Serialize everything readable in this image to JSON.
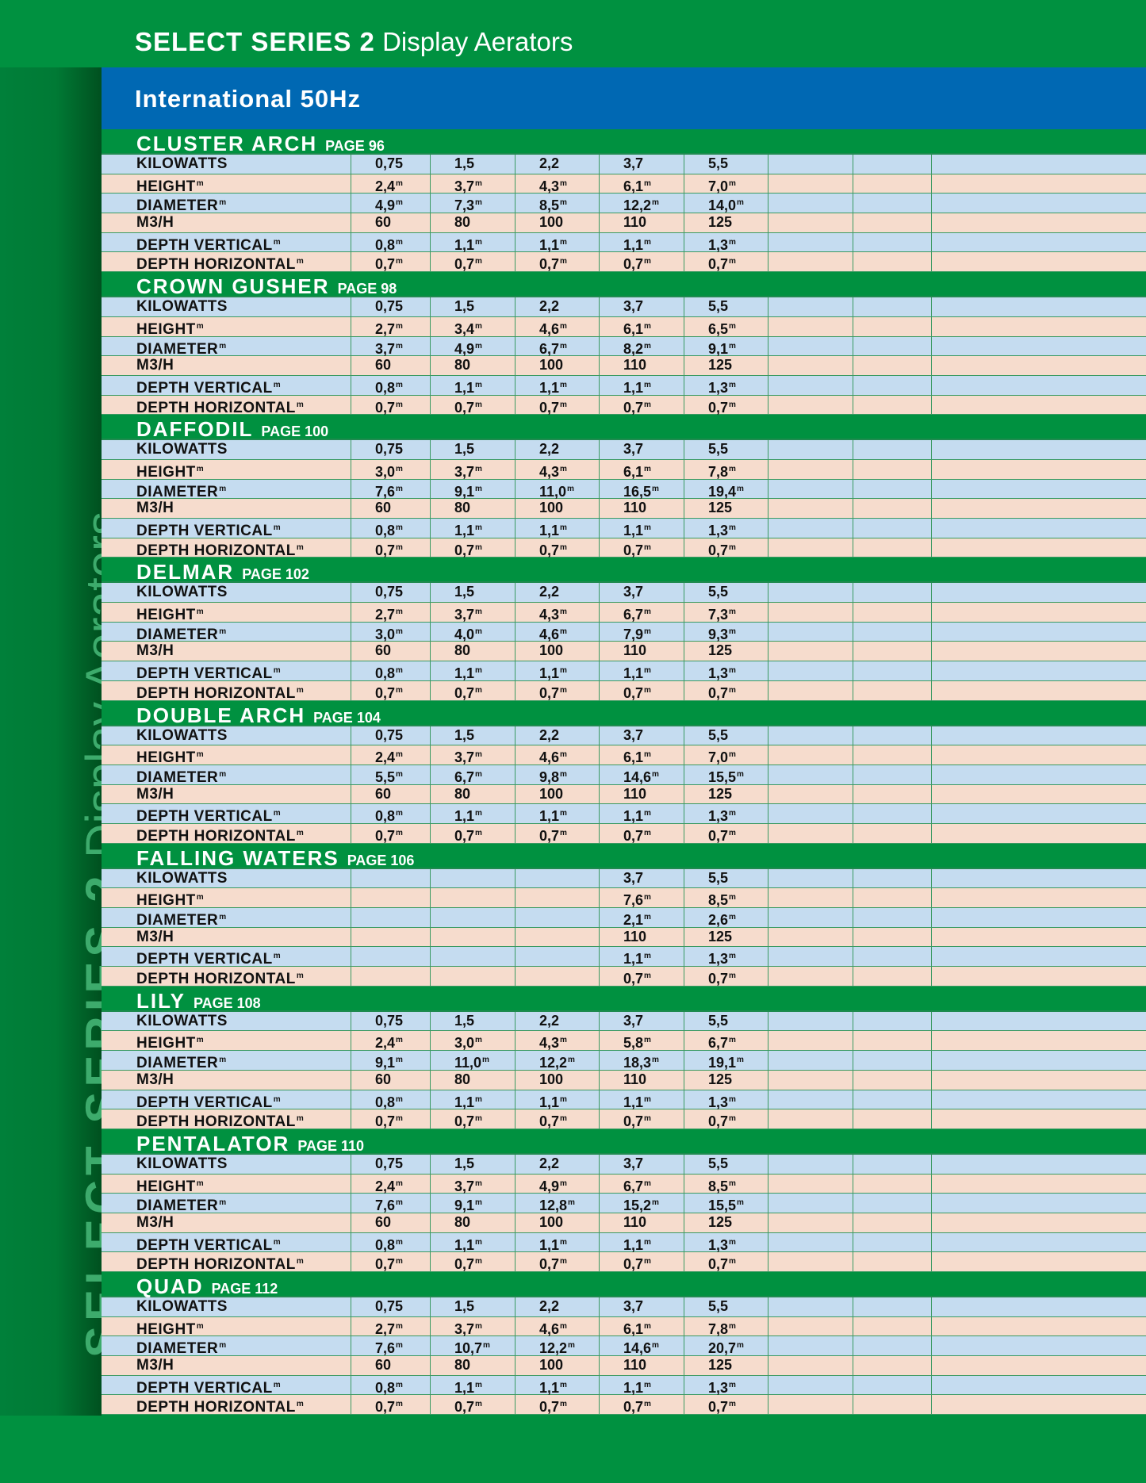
{
  "header": {
    "title_bold": "SELECT SERIES 2",
    "title_light": "Display Aerators"
  },
  "sidebar": {
    "text_bold": "SELECT SERIES 2",
    "text_light": "Display Aerators"
  },
  "band": {
    "title": "International 50Hz"
  },
  "colors": {
    "green": "#009140",
    "blue_band": "#0068b3",
    "row_blue": "#c5dcf0",
    "row_peach": "#f6dccd"
  },
  "sections": [
    {
      "name": "CLUSTER ARCH",
      "page": "PAGE 96",
      "rows": [
        {
          "label": "KILOWATTS",
          "unit": "",
          "values": [
            "0,75",
            "1,5",
            "2,2",
            "3,7",
            "5,5"
          ]
        },
        {
          "label": "HEIGHT",
          "unit": "m",
          "values": [
            "2,4",
            "3,7",
            "4,3",
            "6,1",
            "7,0"
          ]
        },
        {
          "label": "DIAMETER",
          "unit": "m",
          "values": [
            "4,9",
            "7,3",
            "8,5",
            "12,2",
            "14,0"
          ]
        },
        {
          "label": "M3/H",
          "unit": "",
          "values": [
            "60",
            "80",
            "100",
            "110",
            "125"
          ]
        },
        {
          "label": "DEPTH VERTICAL",
          "unit": "m",
          "values": [
            "0,8",
            "1,1",
            "1,1",
            "1,1",
            "1,3"
          ]
        },
        {
          "label": "DEPTH HORIZONTAL",
          "unit": "m",
          "values": [
            "0,7",
            "0,7",
            "0,7",
            "0,7",
            "0,7"
          ]
        }
      ]
    },
    {
      "name": "CROWN GUSHER",
      "page": "PAGE 98",
      "rows": [
        {
          "label": "KILOWATTS",
          "unit": "",
          "values": [
            "0,75",
            "1,5",
            "2,2",
            "3,7",
            "5,5"
          ]
        },
        {
          "label": "HEIGHT",
          "unit": "m",
          "values": [
            "2,7",
            "3,4",
            "4,6",
            "6,1",
            "6,5"
          ]
        },
        {
          "label": "DIAMETER",
          "unit": "m",
          "values": [
            "3,7",
            "4,9",
            "6,7",
            "8,2",
            "9,1"
          ]
        },
        {
          "label": "M3/H",
          "unit": "",
          "values": [
            "60",
            "80",
            "100",
            "110",
            "125"
          ]
        },
        {
          "label": "DEPTH VERTICAL",
          "unit": "m",
          "values": [
            "0,8",
            "1,1",
            "1,1",
            "1,1",
            "1,3"
          ]
        },
        {
          "label": "DEPTH HORIZONTAL",
          "unit": "m",
          "values": [
            "0,7",
            "0,7",
            "0,7",
            "0,7",
            "0,7"
          ]
        }
      ]
    },
    {
      "name": "DAFFODIL",
      "page": "PAGE 100",
      "rows": [
        {
          "label": "KILOWATTS",
          "unit": "",
          "values": [
            "0,75",
            "1,5",
            "2,2",
            "3,7",
            "5,5"
          ]
        },
        {
          "label": "HEIGHT",
          "unit": "m",
          "values": [
            "3,0",
            "3,7",
            "4,3",
            "6,1",
            "7,8"
          ]
        },
        {
          "label": "DIAMETER",
          "unit": "m",
          "values": [
            "7,6",
            "9,1",
            "11,0",
            "16,5",
            "19,4"
          ]
        },
        {
          "label": "M3/H",
          "unit": "",
          "values": [
            "60",
            "80",
            "100",
            "110",
            "125"
          ]
        },
        {
          "label": "DEPTH VERTICAL",
          "unit": "m",
          "values": [
            "0,8",
            "1,1",
            "1,1",
            "1,1",
            "1,3"
          ]
        },
        {
          "label": "DEPTH HORIZONTAL",
          "unit": "m",
          "values": [
            "0,7",
            "0,7",
            "0,7",
            "0,7",
            "0,7"
          ]
        }
      ]
    },
    {
      "name": "DELMAR",
      "page": "PAGE 102",
      "rows": [
        {
          "label": "KILOWATTS",
          "unit": "",
          "values": [
            "0,75",
            "1,5",
            "2,2",
            "3,7",
            "5,5"
          ]
        },
        {
          "label": "HEIGHT",
          "unit": "m",
          "values": [
            "2,7",
            "3,7",
            "4,3",
            "6,7",
            "7,3"
          ]
        },
        {
          "label": "DIAMETER",
          "unit": "m",
          "values": [
            "3,0",
            "4,0",
            "4,6",
            "7,9",
            "9,3"
          ]
        },
        {
          "label": "M3/H",
          "unit": "",
          "values": [
            "60",
            "80",
            "100",
            "110",
            "125"
          ]
        },
        {
          "label": "DEPTH VERTICAL",
          "unit": "m",
          "values": [
            "0,8",
            "1,1",
            "1,1",
            "1,1",
            "1,3"
          ]
        },
        {
          "label": "DEPTH HORIZONTAL",
          "unit": "m",
          "values": [
            "0,7",
            "0,7",
            "0,7",
            "0,7",
            "0,7"
          ]
        }
      ]
    },
    {
      "name": "DOUBLE ARCH",
      "page": "PAGE 104",
      "rows": [
        {
          "label": "KILOWATTS",
          "unit": "",
          "values": [
            "0,75",
            "1,5",
            "2,2",
            "3,7",
            "5,5"
          ]
        },
        {
          "label": "HEIGHT",
          "unit": "m",
          "values": [
            "2,4",
            "3,7",
            "4,6",
            "6,1",
            "7,0"
          ]
        },
        {
          "label": "DIAMETER",
          "unit": "m",
          "values": [
            "5,5",
            "6,7",
            "9,8",
            "14,6",
            "15,5"
          ]
        },
        {
          "label": "M3/H",
          "unit": "",
          "values": [
            "60",
            "80",
            "100",
            "110",
            "125"
          ]
        },
        {
          "label": "DEPTH VERTICAL",
          "unit": "m",
          "values": [
            "0,8",
            "1,1",
            "1,1",
            "1,1",
            "1,3"
          ]
        },
        {
          "label": "DEPTH HORIZONTAL",
          "unit": "m",
          "values": [
            "0,7",
            "0,7",
            "0,7",
            "0,7",
            "0,7"
          ]
        }
      ]
    },
    {
      "name": "FALLING WATERS",
      "page": "PAGE 106",
      "rows": [
        {
          "label": "KILOWATTS",
          "unit": "",
          "values": [
            "",
            "",
            "",
            "3,7",
            "5,5"
          ]
        },
        {
          "label": "HEIGHT",
          "unit": "m",
          "values": [
            "",
            "",
            "",
            "7,6",
            "8,5"
          ]
        },
        {
          "label": "DIAMETER",
          "unit": "m",
          "values": [
            "",
            "",
            "",
            "2,1",
            "2,6"
          ]
        },
        {
          "label": "M3/H",
          "unit": "",
          "values": [
            "",
            "",
            "",
            "110",
            "125"
          ]
        },
        {
          "label": "DEPTH VERTICAL",
          "unit": "m",
          "values": [
            "",
            "",
            "",
            "1,1",
            "1,3"
          ]
        },
        {
          "label": "DEPTH HORIZONTAL",
          "unit": "m",
          "values": [
            "",
            "",
            "",
            "0,7",
            "0,7"
          ]
        }
      ]
    },
    {
      "name": "LILY",
      "page": "PAGE 108",
      "rows": [
        {
          "label": "KILOWATTS",
          "unit": "",
          "values": [
            "0,75",
            "1,5",
            "2,2",
            "3,7",
            "5,5"
          ]
        },
        {
          "label": "HEIGHT",
          "unit": "m",
          "values": [
            "2,4",
            "3,0",
            "4,3",
            "5,8",
            "6,7"
          ]
        },
        {
          "label": "DIAMETER",
          "unit": "m",
          "values": [
            "9,1",
            "11,0",
            "12,2",
            "18,3",
            "19,1"
          ]
        },
        {
          "label": "M3/H",
          "unit": "",
          "values": [
            "60",
            "80",
            "100",
            "110",
            "125"
          ]
        },
        {
          "label": "DEPTH VERTICAL",
          "unit": "m",
          "values": [
            "0,8",
            "1,1",
            "1,1",
            "1,1",
            "1,3"
          ]
        },
        {
          "label": "DEPTH HORIZONTAL",
          "unit": "m",
          "values": [
            "0,7",
            "0,7",
            "0,7",
            "0,7",
            "0,7"
          ]
        }
      ]
    },
    {
      "name": "PENTALATOR",
      "page": "PAGE 110",
      "rows": [
        {
          "label": "KILOWATTS",
          "unit": "",
          "values": [
            "0,75",
            "1,5",
            "2,2",
            "3,7",
            "5,5"
          ]
        },
        {
          "label": "HEIGHT",
          "unit": "m",
          "values": [
            "2,4",
            "3,7",
            "4,9",
            "6,7",
            "8,5"
          ]
        },
        {
          "label": "DIAMETER",
          "unit": "m",
          "values": [
            "7,6",
            "9,1",
            "12,8",
            "15,2",
            "15,5"
          ]
        },
        {
          "label": "M3/H",
          "unit": "",
          "values": [
            "60",
            "80",
            "100",
            "110",
            "125"
          ]
        },
        {
          "label": "DEPTH VERTICAL",
          "unit": "m",
          "values": [
            "0,8",
            "1,1",
            "1,1",
            "1,1",
            "1,3"
          ]
        },
        {
          "label": "DEPTH HORIZONTAL",
          "unit": "m",
          "values": [
            "0,7",
            "0,7",
            "0,7",
            "0,7",
            "0,7"
          ]
        }
      ]
    },
    {
      "name": "QUAD",
      "page": "PAGE 112",
      "rows": [
        {
          "label": "KILOWATTS",
          "unit": "",
          "values": [
            "0,75",
            "1,5",
            "2,2",
            "3,7",
            "5,5"
          ]
        },
        {
          "label": "HEIGHT",
          "unit": "m",
          "values": [
            "2,7",
            "3,7",
            "4,6",
            "6,1",
            "7,8"
          ]
        },
        {
          "label": "DIAMETER",
          "unit": "m",
          "values": [
            "7,6",
            "10,7",
            "12,2",
            "14,6",
            "20,7"
          ]
        },
        {
          "label": "M3/H",
          "unit": "",
          "values": [
            "60",
            "80",
            "100",
            "110",
            "125"
          ]
        },
        {
          "label": "DEPTH VERTICAL",
          "unit": "m",
          "values": [
            "0,8",
            "1,1",
            "1,1",
            "1,1",
            "1,3"
          ]
        },
        {
          "label": "DEPTH HORIZONTAL",
          "unit": "m",
          "values": [
            "0,7",
            "0,7",
            "0,7",
            "0,7",
            "0,7"
          ]
        }
      ]
    }
  ]
}
